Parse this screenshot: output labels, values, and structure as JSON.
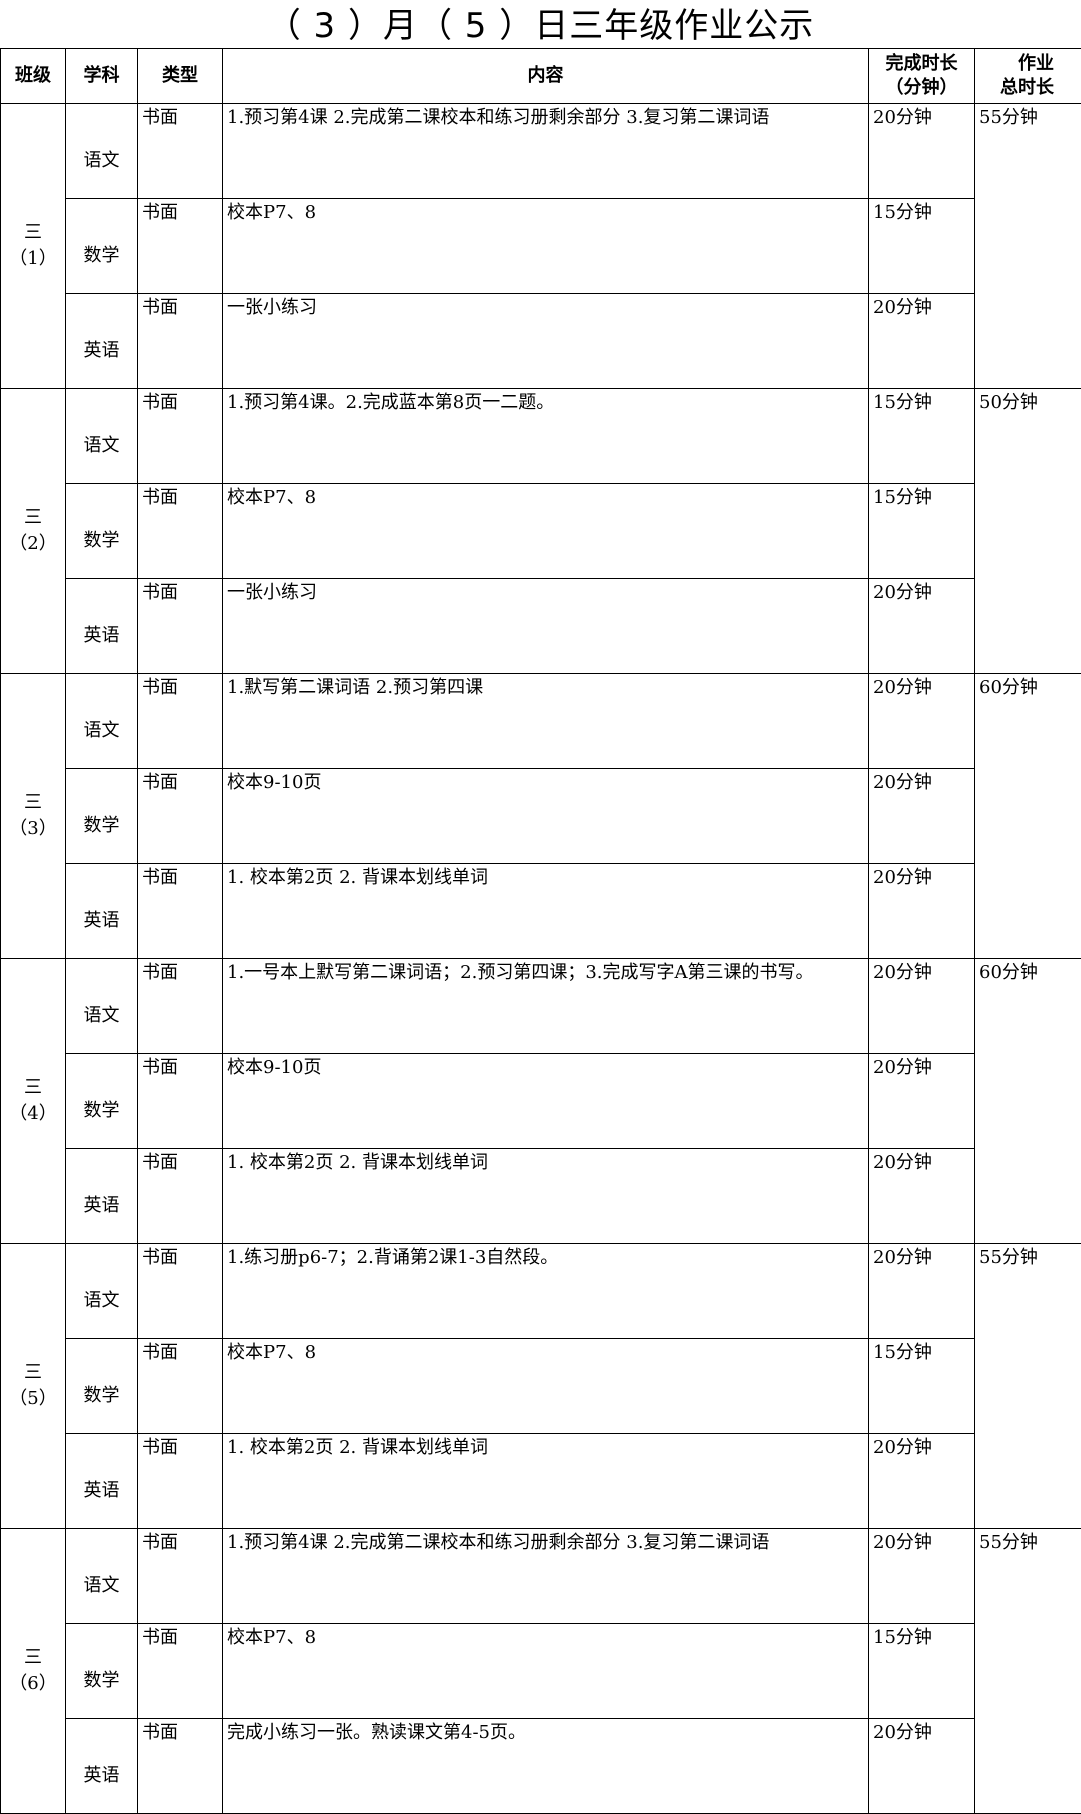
{
  "title": "（ 3  ）月（ 5 ）日三年级作业公示",
  "headers": [
    "班级",
    "学科",
    "类型",
    "内容",
    "完成时长（分钟）",
    "作业总时长"
  ],
  "header_lines": {
    "duration": [
      "完成时长",
      "（分钟）"
    ],
    "total": [
      "作业",
      "总时长"
    ]
  },
  "classes": [
    {
      "name": "三",
      "num": "（1）",
      "total": "55分钟",
      "rows": [
        {
          "subject": "语文",
          "type": "书面",
          "content": "1.预习第4课 2.完成第二课校本和练习册剩余部分 3.复习第二课词语",
          "time": "20分钟"
        },
        {
          "subject": "数学",
          "type": "书面",
          "content": "校本P7、8",
          "time": "15分钟"
        },
        {
          "subject": "英语",
          "type": "书面",
          "content": "一张小练习",
          "time": "20分钟"
        }
      ]
    },
    {
      "name": "三",
      "num": "（2）",
      "total": "50分钟",
      "rows": [
        {
          "subject": "语文",
          "type": "书面",
          "content": "1.预习第4课。2.完成蓝本第8页一二题。",
          "time": "15分钟"
        },
        {
          "subject": "数学",
          "type": "书面",
          "content": "校本P7、8",
          "time": "15分钟"
        },
        {
          "subject": "英语",
          "type": "书面",
          "content": "一张小练习",
          "time": "20分钟"
        }
      ]
    },
    {
      "name": "三",
      "num": "（3）",
      "total": "60分钟",
      "rows": [
        {
          "subject": "语文",
          "type": "书面",
          "content": "1.默写第二课词语 2.预习第四课",
          "time": "20分钟"
        },
        {
          "subject": "数学",
          "type": "书面",
          "content": "校本9-10页",
          "time": "20分钟"
        },
        {
          "subject": "英语",
          "type": "书面",
          "content": "1. 校本第2页 2. 背课本划线单词",
          "time": "20分钟"
        }
      ]
    },
    {
      "name": "三",
      "num": "（4）",
      "total": "60分钟",
      "rows": [
        {
          "subject": "语文",
          "type": "书面",
          "content": "1.一号本上默写第二课词语；2.预习第四课；3.完成写字A第三课的书写。",
          "time": "20分钟"
        },
        {
          "subject": "数学",
          "type": "书面",
          "content": "校本9-10页",
          "time": "20分钟"
        },
        {
          "subject": "英语",
          "type": "书面",
          "content": "1. 校本第2页 2. 背课本划线单词",
          "time": "20分钟"
        }
      ]
    },
    {
      "name": "三",
      "num": "（5）",
      "total": "55分钟",
      "rows": [
        {
          "subject": "语文",
          "type": "书面",
          "content": "1.练习册p6-7；2.背诵第2课1-3自然段。",
          "time": "20分钟"
        },
        {
          "subject": "数学",
          "type": "书面",
          "content": "校本P7、8",
          "time": "15分钟"
        },
        {
          "subject": "英语",
          "type": "书面",
          "content": "1. 校本第2页 2. 背课本划线单词",
          "time": "20分钟"
        }
      ]
    },
    {
      "name": "三",
      "num": "（6）",
      "total": "55分钟",
      "rows": [
        {
          "subject": "语文",
          "type": "书面",
          "content": "1.预习第4课 2.完成第二课校本和练习册剩余部分 3.复习第二课词语",
          "time": "20分钟"
        },
        {
          "subject": "数学",
          "type": "书面",
          "content": "校本P7、8",
          "time": "15分钟"
        },
        {
          "subject": "英语",
          "type": "书面",
          "content": "完成小练习一张。熟读课文第4-5页。",
          "time": "20分钟"
        }
      ]
    }
  ]
}
